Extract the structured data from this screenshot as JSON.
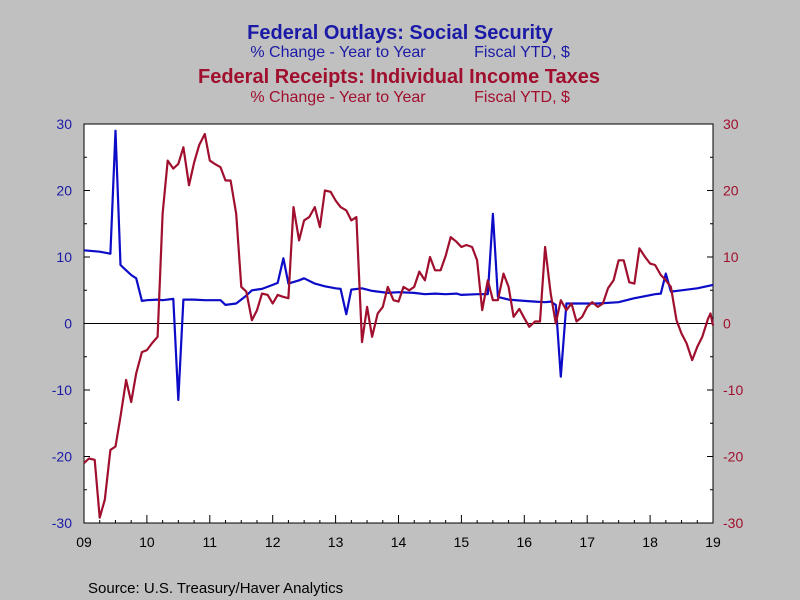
{
  "chart_data": {
    "type": "line",
    "titles": [
      {
        "title": "Federal Outlays: Social Security",
        "subtitle_left": "% Change - Year to Year",
        "subtitle_right": "Fiscal YTD, $",
        "color": "#1a1aa6"
      },
      {
        "title": "Federal Receipts: Individual Income Taxes",
        "subtitle_left": "% Change - Year to Year",
        "subtitle_right": "Fiscal YTD, $",
        "color": "#a00f2d"
      }
    ],
    "source": "Source:  U.S. Treasury/Haver Analytics",
    "x_tick_labels": [
      "09",
      "10",
      "11",
      "12",
      "13",
      "14",
      "15",
      "16",
      "17",
      "18",
      "19"
    ],
    "x_range": [
      2009.0,
      2019.0
    ],
    "y_left": {
      "ticks": [
        "30",
        "20",
        "10",
        "0",
        "-10",
        "-20",
        "-30"
      ],
      "ylim": [
        -30,
        30
      ],
      "color": "#1a1aa6"
    },
    "y_right": {
      "ticks": [
        "30",
        "20",
        "10",
        "0",
        "-10",
        "-20",
        "-30"
      ],
      "ylim": [
        -30,
        30
      ],
      "color": "#a00f2d"
    },
    "zero_line": true,
    "grid": false,
    "series": [
      {
        "color": "#0b0bc8",
        "points": [
          [
            2009.0,
            11
          ],
          [
            2009.25,
            10.8
          ],
          [
            2009.42,
            10.5
          ],
          [
            2009.5,
            29.0
          ],
          [
            2009.58,
            8.8
          ],
          [
            2009.67,
            8.0
          ],
          [
            2009.75,
            7.3
          ],
          [
            2009.83,
            6.8
          ],
          [
            2009.92,
            3.4
          ],
          [
            2010.0,
            3.5
          ],
          [
            2010.17,
            3.6
          ],
          [
            2010.25,
            3.5
          ],
          [
            2010.42,
            3.7
          ],
          [
            2010.5,
            -11.5
          ],
          [
            2010.58,
            3.6
          ],
          [
            2010.75,
            3.6
          ],
          [
            2010.92,
            3.5
          ],
          [
            2011.17,
            3.5
          ],
          [
            2011.25,
            2.8
          ],
          [
            2011.42,
            3.0
          ],
          [
            2011.58,
            4.2
          ],
          [
            2011.67,
            5.0
          ],
          [
            2011.83,
            5.2
          ],
          [
            2012.0,
            5.8
          ],
          [
            2012.08,
            6.1
          ],
          [
            2012.17,
            9.8
          ],
          [
            2012.25,
            6.0
          ],
          [
            2012.42,
            6.5
          ],
          [
            2012.5,
            6.8
          ],
          [
            2012.67,
            6.0
          ],
          [
            2012.83,
            5.6
          ],
          [
            2013.0,
            5.3
          ],
          [
            2013.08,
            5.2
          ],
          [
            2013.17,
            1.4
          ],
          [
            2013.25,
            5.1
          ],
          [
            2013.42,
            5.3
          ],
          [
            2013.58,
            4.9
          ],
          [
            2013.83,
            4.6
          ],
          [
            2014.0,
            4.7
          ],
          [
            2014.25,
            4.6
          ],
          [
            2014.42,
            4.4
          ],
          [
            2014.58,
            4.5
          ],
          [
            2014.75,
            4.4
          ],
          [
            2014.92,
            4.5
          ],
          [
            2015.0,
            4.3
          ],
          [
            2015.25,
            4.4
          ],
          [
            2015.42,
            4.4
          ],
          [
            2015.5,
            16.5
          ],
          [
            2015.58,
            4.0
          ],
          [
            2015.75,
            3.6
          ],
          [
            2016.0,
            3.4
          ],
          [
            2016.17,
            3.3
          ],
          [
            2016.33,
            3.2
          ],
          [
            2016.42,
            3.3
          ],
          [
            2016.5,
            2.8
          ],
          [
            2016.58,
            -8.0
          ],
          [
            2016.67,
            3.0
          ],
          [
            2016.83,
            3.0
          ],
          [
            2017.17,
            3.0
          ],
          [
            2017.5,
            3.2
          ],
          [
            2017.75,
            3.8
          ],
          [
            2018.08,
            4.4
          ],
          [
            2018.17,
            4.5
          ],
          [
            2018.25,
            7.5
          ],
          [
            2018.33,
            4.8
          ],
          [
            2018.5,
            5.0
          ],
          [
            2018.75,
            5.3
          ],
          [
            2019.0,
            5.8
          ]
        ]
      },
      {
        "color": "#a00f2d",
        "points": [
          [
            2009.0,
            -21
          ],
          [
            2009.08,
            -20.3
          ],
          [
            2009.17,
            -20.5
          ],
          [
            2009.25,
            -29.2
          ],
          [
            2009.33,
            -26.5
          ],
          [
            2009.42,
            -19
          ],
          [
            2009.5,
            -18.5
          ],
          [
            2009.58,
            -14
          ],
          [
            2009.67,
            -8.5
          ],
          [
            2009.75,
            -11.8
          ],
          [
            2009.83,
            -7.5
          ],
          [
            2009.92,
            -4.3
          ],
          [
            2010.0,
            -4.0
          ],
          [
            2010.08,
            -3.0
          ],
          [
            2010.17,
            -2.0
          ],
          [
            2010.25,
            16.5
          ],
          [
            2010.33,
            24.5
          ],
          [
            2010.42,
            23.3
          ],
          [
            2010.5,
            24.0
          ],
          [
            2010.58,
            26.5
          ],
          [
            2010.67,
            20.8
          ],
          [
            2010.75,
            24.2
          ],
          [
            2010.83,
            26.8
          ],
          [
            2010.92,
            28.5
          ],
          [
            2011.0,
            24.5
          ],
          [
            2011.08,
            24.0
          ],
          [
            2011.17,
            23.5
          ],
          [
            2011.25,
            21.5
          ],
          [
            2011.33,
            21.5
          ],
          [
            2011.42,
            16.5
          ],
          [
            2011.5,
            5.5
          ],
          [
            2011.58,
            4.8
          ],
          [
            2011.67,
            0.5
          ],
          [
            2011.75,
            2.0
          ],
          [
            2011.83,
            4.5
          ],
          [
            2011.92,
            4.3
          ],
          [
            2012.0,
            3.0
          ],
          [
            2012.08,
            4.3
          ],
          [
            2012.17,
            4.0
          ],
          [
            2012.25,
            3.8
          ],
          [
            2012.33,
            17.5
          ],
          [
            2012.42,
            12.5
          ],
          [
            2012.5,
            15.5
          ],
          [
            2012.58,
            16.0
          ],
          [
            2012.67,
            17.5
          ],
          [
            2012.75,
            14.5
          ],
          [
            2012.83,
            20.0
          ],
          [
            2012.92,
            19.8
          ],
          [
            2013.0,
            18.5
          ],
          [
            2013.08,
            17.5
          ],
          [
            2013.17,
            17.0
          ],
          [
            2013.25,
            15.5
          ],
          [
            2013.33,
            16.0
          ],
          [
            2013.42,
            -2.8
          ],
          [
            2013.5,
            2.5
          ],
          [
            2013.58,
            -2.0
          ],
          [
            2013.67,
            1.5
          ],
          [
            2013.75,
            2.5
          ],
          [
            2013.83,
            5.5
          ],
          [
            2013.92,
            3.5
          ],
          [
            2014.0,
            3.3
          ],
          [
            2014.08,
            5.5
          ],
          [
            2014.17,
            5.0
          ],
          [
            2014.25,
            5.5
          ],
          [
            2014.33,
            7.8
          ],
          [
            2014.42,
            6.5
          ],
          [
            2014.5,
            10.0
          ],
          [
            2014.58,
            8.0
          ],
          [
            2014.67,
            8.0
          ],
          [
            2014.75,
            10.2
          ],
          [
            2014.83,
            13.0
          ],
          [
            2014.92,
            12.3
          ],
          [
            2015.0,
            11.5
          ],
          [
            2015.08,
            11.8
          ],
          [
            2015.17,
            11.5
          ],
          [
            2015.25,
            9.5
          ],
          [
            2015.33,
            2.0
          ],
          [
            2015.42,
            6.5
          ],
          [
            2015.5,
            3.5
          ],
          [
            2015.58,
            3.5
          ],
          [
            2015.67,
            7.5
          ],
          [
            2015.75,
            5.5
          ],
          [
            2015.83,
            1.0
          ],
          [
            2015.92,
            2.2
          ],
          [
            2016.0,
            0.8
          ],
          [
            2016.08,
            -0.5
          ],
          [
            2016.17,
            0.3
          ],
          [
            2016.25,
            0.3
          ],
          [
            2016.33,
            11.5
          ],
          [
            2016.42,
            4.5
          ],
          [
            2016.5,
            0.0
          ],
          [
            2016.58,
            3.5
          ],
          [
            2016.67,
            2.0
          ],
          [
            2016.75,
            3.0
          ],
          [
            2016.83,
            0.3
          ],
          [
            2016.92,
            1.0
          ],
          [
            2017.0,
            2.5
          ],
          [
            2017.08,
            3.2
          ],
          [
            2017.17,
            2.5
          ],
          [
            2017.25,
            3.0
          ],
          [
            2017.33,
            5.3
          ],
          [
            2017.42,
            6.5
          ],
          [
            2017.5,
            9.5
          ],
          [
            2017.58,
            9.5
          ],
          [
            2017.67,
            6.2
          ],
          [
            2017.75,
            6.0
          ],
          [
            2017.83,
            11.3
          ],
          [
            2017.92,
            10.0
          ],
          [
            2018.0,
            9.0
          ],
          [
            2018.08,
            8.8
          ],
          [
            2018.17,
            7.3
          ],
          [
            2018.25,
            6.5
          ],
          [
            2018.33,
            5.5
          ],
          [
            2018.42,
            0.5
          ],
          [
            2018.5,
            -1.5
          ],
          [
            2018.58,
            -3.0
          ],
          [
            2018.67,
            -5.5
          ],
          [
            2018.75,
            -3.5
          ],
          [
            2018.83,
            -2.0
          ],
          [
            2018.92,
            0.7
          ],
          [
            2018.96,
            1.5
          ],
          [
            2019.0,
            -0.3
          ]
        ]
      }
    ]
  }
}
